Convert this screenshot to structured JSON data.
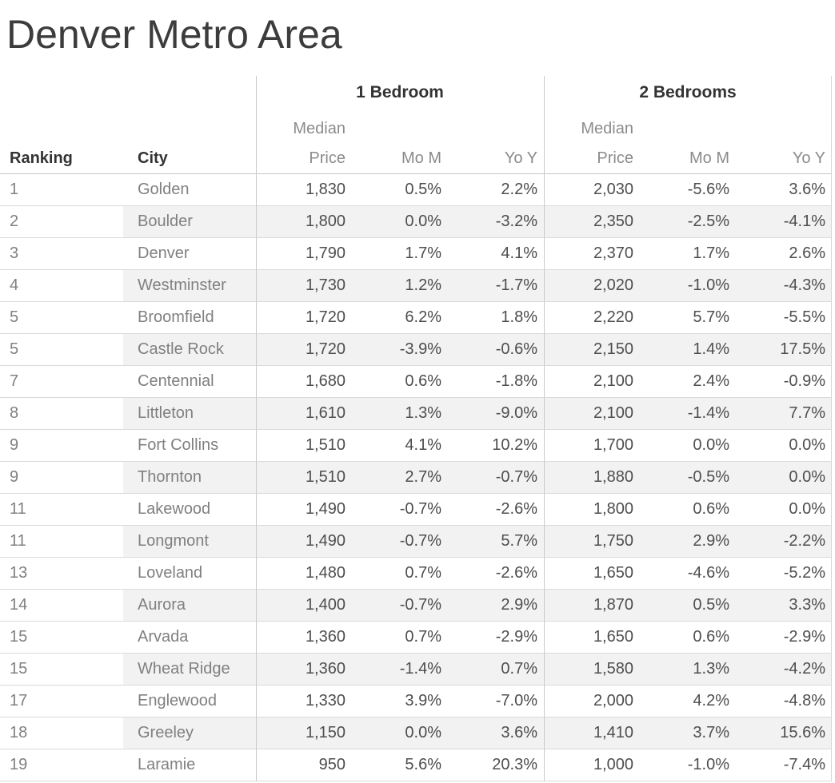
{
  "title": "Denver Metro Area",
  "table": {
    "groups": [
      {
        "label": "1 Bedroom"
      },
      {
        "label": "2 Bedrooms"
      }
    ],
    "row_headers": {
      "ranking": "Ranking",
      "city": "City"
    },
    "col_headers": {
      "median_price": "Median\nPrice",
      "mom": "Mo M",
      "yoy": "Yo Y"
    },
    "rows": [
      {
        "rank": "1",
        "city": "Golden",
        "b1_price": "1,830",
        "b1_mom": "0.5%",
        "b1_yoy": "2.2%",
        "b2_price": "2,030",
        "b2_mom": "-5.6%",
        "b2_yoy": "3.6%"
      },
      {
        "rank": "2",
        "city": "Boulder",
        "b1_price": "1,800",
        "b1_mom": "0.0%",
        "b1_yoy": "-3.2%",
        "b2_price": "2,350",
        "b2_mom": "-2.5%",
        "b2_yoy": "-4.1%"
      },
      {
        "rank": "3",
        "city": "Denver",
        "b1_price": "1,790",
        "b1_mom": "1.7%",
        "b1_yoy": "4.1%",
        "b2_price": "2,370",
        "b2_mom": "1.7%",
        "b2_yoy": "2.6%"
      },
      {
        "rank": "4",
        "city": "Westminster",
        "b1_price": "1,730",
        "b1_mom": "1.2%",
        "b1_yoy": "-1.7%",
        "b2_price": "2,020",
        "b2_mom": "-1.0%",
        "b2_yoy": "-4.3%"
      },
      {
        "rank": "5",
        "city": "Broomfield",
        "b1_price": "1,720",
        "b1_mom": "6.2%",
        "b1_yoy": "1.8%",
        "b2_price": "2,220",
        "b2_mom": "5.7%",
        "b2_yoy": "-5.5%"
      },
      {
        "rank": "5",
        "city": "Castle Rock",
        "b1_price": "1,720",
        "b1_mom": "-3.9%",
        "b1_yoy": "-0.6%",
        "b2_price": "2,150",
        "b2_mom": "1.4%",
        "b2_yoy": "17.5%"
      },
      {
        "rank": "7",
        "city": "Centennial",
        "b1_price": "1,680",
        "b1_mom": "0.6%",
        "b1_yoy": "-1.8%",
        "b2_price": "2,100",
        "b2_mom": "2.4%",
        "b2_yoy": "-0.9%"
      },
      {
        "rank": "8",
        "city": "Littleton",
        "b1_price": "1,610",
        "b1_mom": "1.3%",
        "b1_yoy": "-9.0%",
        "b2_price": "2,100",
        "b2_mom": "-1.4%",
        "b2_yoy": "7.7%"
      },
      {
        "rank": "9",
        "city": "Fort Collins",
        "b1_price": "1,510",
        "b1_mom": "4.1%",
        "b1_yoy": "10.2%",
        "b2_price": "1,700",
        "b2_mom": "0.0%",
        "b2_yoy": "0.0%"
      },
      {
        "rank": "9",
        "city": "Thornton",
        "b1_price": "1,510",
        "b1_mom": "2.7%",
        "b1_yoy": "-0.7%",
        "b2_price": "1,880",
        "b2_mom": "-0.5%",
        "b2_yoy": "0.0%"
      },
      {
        "rank": "11",
        "city": "Lakewood",
        "b1_price": "1,490",
        "b1_mom": "-0.7%",
        "b1_yoy": "-2.6%",
        "b2_price": "1,800",
        "b2_mom": "0.6%",
        "b2_yoy": "0.0%"
      },
      {
        "rank": "11",
        "city": "Longmont",
        "b1_price": "1,490",
        "b1_mom": "-0.7%",
        "b1_yoy": "5.7%",
        "b2_price": "1,750",
        "b2_mom": "2.9%",
        "b2_yoy": "-2.2%"
      },
      {
        "rank": "13",
        "city": "Loveland",
        "b1_price": "1,480",
        "b1_mom": "0.7%",
        "b1_yoy": "-2.6%",
        "b2_price": "1,650",
        "b2_mom": "-4.6%",
        "b2_yoy": "-5.2%"
      },
      {
        "rank": "14",
        "city": "Aurora",
        "b1_price": "1,400",
        "b1_mom": "-0.7%",
        "b1_yoy": "2.9%",
        "b2_price": "1,870",
        "b2_mom": "0.5%",
        "b2_yoy": "3.3%"
      },
      {
        "rank": "15",
        "city": "Arvada",
        "b1_price": "1,360",
        "b1_mom": "0.7%",
        "b1_yoy": "-2.9%",
        "b2_price": "1,650",
        "b2_mom": "0.6%",
        "b2_yoy": "-2.9%"
      },
      {
        "rank": "15",
        "city": "Wheat Ridge",
        "b1_price": "1,360",
        "b1_mom": "-1.4%",
        "b1_yoy": "0.7%",
        "b2_price": "1,580",
        "b2_mom": "1.3%",
        "b2_yoy": "-4.2%"
      },
      {
        "rank": "17",
        "city": "Englewood",
        "b1_price": "1,330",
        "b1_mom": "3.9%",
        "b1_yoy": "-7.0%",
        "b2_price": "2,000",
        "b2_mom": "4.2%",
        "b2_yoy": "-4.8%"
      },
      {
        "rank": "18",
        "city": "Greeley",
        "b1_price": "1,150",
        "b1_mom": "0.0%",
        "b1_yoy": "3.6%",
        "b2_price": "1,410",
        "b2_mom": "3.7%",
        "b2_yoy": "15.6%"
      },
      {
        "rank": "19",
        "city": "Laramie",
        "b1_price": "950",
        "b1_mom": "5.6%",
        "b1_yoy": "20.3%",
        "b2_price": "1,000",
        "b2_mom": "-1.0%",
        "b2_yoy": "-7.4%"
      }
    ]
  },
  "colors": {
    "title_text": "#3c3c3c",
    "header_dark_text": "#333333",
    "header_gray_text": "#8b8b8b",
    "row_label_text": "#808080",
    "value_text": "#4e4e4e",
    "band_fill": "#f2f2f2",
    "gridline": "#dadada",
    "divider": "#cbcbcb"
  },
  "chart_data": {
    "type": "table",
    "title": "Denver Metro Area",
    "column_groups": [
      "1 Bedroom",
      "2 Bedrooms"
    ],
    "columns": [
      "Ranking",
      "City",
      "1BR Median Price",
      "1BR MoM %",
      "1BR YoY %",
      "2BR Median Price",
      "2BR MoM %",
      "2BR YoY %"
    ],
    "rows": [
      [
        1,
        "Golden",
        1830,
        0.5,
        2.2,
        2030,
        -5.6,
        3.6
      ],
      [
        2,
        "Boulder",
        1800,
        0.0,
        -3.2,
        2350,
        -2.5,
        -4.1
      ],
      [
        3,
        "Denver",
        1790,
        1.7,
        4.1,
        2370,
        1.7,
        2.6
      ],
      [
        4,
        "Westminster",
        1730,
        1.2,
        -1.7,
        2020,
        -1.0,
        -4.3
      ],
      [
        5,
        "Broomfield",
        1720,
        6.2,
        1.8,
        2220,
        5.7,
        -5.5
      ],
      [
        5,
        "Castle Rock",
        1720,
        -3.9,
        -0.6,
        2150,
        1.4,
        17.5
      ],
      [
        7,
        "Centennial",
        1680,
        0.6,
        -1.8,
        2100,
        2.4,
        -0.9
      ],
      [
        8,
        "Littleton",
        1610,
        1.3,
        -9.0,
        2100,
        -1.4,
        7.7
      ],
      [
        9,
        "Fort Collins",
        1510,
        4.1,
        10.2,
        1700,
        0.0,
        0.0
      ],
      [
        9,
        "Thornton",
        1510,
        2.7,
        -0.7,
        1880,
        -0.5,
        0.0
      ],
      [
        11,
        "Lakewood",
        1490,
        -0.7,
        -2.6,
        1800,
        0.6,
        0.0
      ],
      [
        11,
        "Longmont",
        1490,
        -0.7,
        5.7,
        1750,
        2.9,
        -2.2
      ],
      [
        13,
        "Loveland",
        1480,
        0.7,
        -2.6,
        1650,
        -4.6,
        -5.2
      ],
      [
        14,
        "Aurora",
        1400,
        -0.7,
        2.9,
        1870,
        0.5,
        3.3
      ],
      [
        15,
        "Arvada",
        1360,
        0.7,
        -2.9,
        1650,
        0.6,
        -2.9
      ],
      [
        15,
        "Wheat Ridge",
        1360,
        -1.4,
        0.7,
        1580,
        1.3,
        -4.2
      ],
      [
        17,
        "Englewood",
        1330,
        3.9,
        -7.0,
        2000,
        4.2,
        -4.8
      ],
      [
        18,
        "Greeley",
        1150,
        0.0,
        3.6,
        1410,
        3.7,
        15.6
      ],
      [
        19,
        "Laramie",
        950,
        5.6,
        20.3,
        1000,
        -1.0,
        -7.4
      ]
    ]
  }
}
